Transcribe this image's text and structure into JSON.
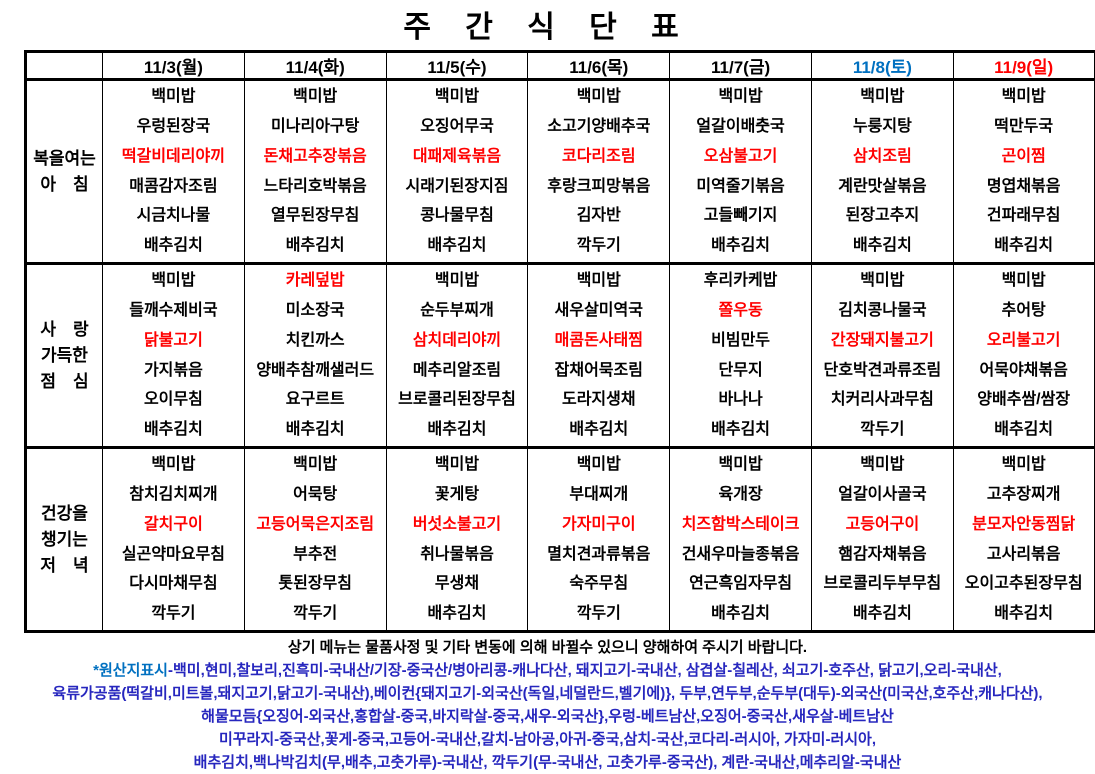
{
  "title": "주 간 식 단 표",
  "colors": {
    "item_red": "#FF0000",
    "saturday_blue": "#0070C0",
    "sunday_red": "#FF0000",
    "origin_navy": "#2626BE",
    "origin_label_blue": "#0070C0"
  },
  "table": {
    "days": [
      {
        "label": "11/3(월)",
        "color": "black"
      },
      {
        "label": "11/4(화)",
        "color": "black"
      },
      {
        "label": "11/5(수)",
        "color": "black"
      },
      {
        "label": "11/6(목)",
        "color": "black"
      },
      {
        "label": "11/7(금)",
        "color": "black"
      },
      {
        "label": "11/8(토)",
        "color": "blue"
      },
      {
        "label": "11/9(일)",
        "color": "red"
      }
    ],
    "meals": [
      {
        "name": "breakfast",
        "label_lines": [
          "복을여는",
          "아　침"
        ],
        "columns": [
          [
            {
              "t": "백미밥",
              "red": false
            },
            {
              "t": "우렁된장국",
              "red": false
            },
            {
              "t": "떡갈비데리야끼",
              "red": true
            },
            {
              "t": "매콤감자조림",
              "red": false
            },
            {
              "t": "시금치나물",
              "red": false
            },
            {
              "t": "배추김치",
              "red": false
            }
          ],
          [
            {
              "t": "백미밥",
              "red": false
            },
            {
              "t": "미나리아구탕",
              "red": false
            },
            {
              "t": "돈채고추장볶음",
              "red": true
            },
            {
              "t": "느타리호박볶음",
              "red": false
            },
            {
              "t": "열무된장무침",
              "red": false
            },
            {
              "t": "배추김치",
              "red": false
            }
          ],
          [
            {
              "t": "백미밥",
              "red": false
            },
            {
              "t": "오징어무국",
              "red": false
            },
            {
              "t": "대패제육볶음",
              "red": true
            },
            {
              "t": "시래기된장지짐",
              "red": false
            },
            {
              "t": "콩나물무침",
              "red": false
            },
            {
              "t": "배추김치",
              "red": false
            }
          ],
          [
            {
              "t": "백미밥",
              "red": false
            },
            {
              "t": "소고기양배추국",
              "red": false
            },
            {
              "t": "코다리조림",
              "red": true
            },
            {
              "t": "후랑크피망볶음",
              "red": false
            },
            {
              "t": "김자반",
              "red": false
            },
            {
              "t": "깍두기",
              "red": false
            }
          ],
          [
            {
              "t": "백미밥",
              "red": false
            },
            {
              "t": "얼갈이배춧국",
              "red": false
            },
            {
              "t": "오삼불고기",
              "red": true
            },
            {
              "t": "미역줄기볶음",
              "red": false
            },
            {
              "t": "고들빼기지",
              "red": false
            },
            {
              "t": "배추김치",
              "red": false
            }
          ],
          [
            {
              "t": "백미밥",
              "red": false
            },
            {
              "t": "누룽지탕",
              "red": false
            },
            {
              "t": "삼치조림",
              "red": true
            },
            {
              "t": "계란맛살볶음",
              "red": false
            },
            {
              "t": "된장고추지",
              "red": false
            },
            {
              "t": "배추김치",
              "red": false
            }
          ],
          [
            {
              "t": "백미밥",
              "red": false
            },
            {
              "t": "떡만두국",
              "red": false
            },
            {
              "t": "곤이찜",
              "red": true
            },
            {
              "t": "명엽채볶음",
              "red": false
            },
            {
              "t": "건파래무침",
              "red": false
            },
            {
              "t": "배추김치",
              "red": false
            }
          ]
        ]
      },
      {
        "name": "lunch",
        "label_lines": [
          "사　랑",
          "가득한",
          "점　심"
        ],
        "columns": [
          [
            {
              "t": "백미밥",
              "red": false
            },
            {
              "t": "들깨수제비국",
              "red": false
            },
            {
              "t": "닭불고기",
              "red": true
            },
            {
              "t": "가지볶음",
              "red": false
            },
            {
              "t": "오이무침",
              "red": false
            },
            {
              "t": "배추김치",
              "red": false
            }
          ],
          [
            {
              "t": "카레덮밥",
              "red": true
            },
            {
              "t": "미소장국",
              "red": false
            },
            {
              "t": "치킨까스",
              "red": false
            },
            {
              "t": "양배추참깨샐러드",
              "red": false
            },
            {
              "t": "요구르트",
              "red": false
            },
            {
              "t": "배추김치",
              "red": false
            }
          ],
          [
            {
              "t": "백미밥",
              "red": false
            },
            {
              "t": "순두부찌개",
              "red": false
            },
            {
              "t": "삼치데리야끼",
              "red": true
            },
            {
              "t": "메추리알조림",
              "red": false
            },
            {
              "t": "브로콜리된장무침",
              "red": false
            },
            {
              "t": "배추김치",
              "red": false
            }
          ],
          [
            {
              "t": "백미밥",
              "red": false
            },
            {
              "t": "새우살미역국",
              "red": false
            },
            {
              "t": "매콤돈사태찜",
              "red": true
            },
            {
              "t": "잡채어묵조림",
              "red": false
            },
            {
              "t": "도라지생채",
              "red": false
            },
            {
              "t": "배추김치",
              "red": false
            }
          ],
          [
            {
              "t": "후리카케밥",
              "red": false
            },
            {
              "t": "쫄우동",
              "red": true
            },
            {
              "t": "비빔만두",
              "red": false
            },
            {
              "t": "단무지",
              "red": false
            },
            {
              "t": "바나나",
              "red": false
            },
            {
              "t": "배추김치",
              "red": false
            }
          ],
          [
            {
              "t": "백미밥",
              "red": false
            },
            {
              "t": "김치콩나물국",
              "red": false
            },
            {
              "t": "간장돼지불고기",
              "red": true
            },
            {
              "t": "단호박견과류조림",
              "red": false
            },
            {
              "t": "치커리사과무침",
              "red": false
            },
            {
              "t": "깍두기",
              "red": false
            }
          ],
          [
            {
              "t": "백미밥",
              "red": false
            },
            {
              "t": "추어탕",
              "red": false
            },
            {
              "t": "오리불고기",
              "red": true
            },
            {
              "t": "어묵야채볶음",
              "red": false
            },
            {
              "t": "양배추쌈/쌈장",
              "red": false
            },
            {
              "t": "배추김치",
              "red": false
            }
          ]
        ]
      },
      {
        "name": "dinner",
        "label_lines": [
          "건강을",
          "챙기는",
          "저　녁"
        ],
        "columns": [
          [
            {
              "t": "백미밥",
              "red": false
            },
            {
              "t": "참치김치찌개",
              "red": false
            },
            {
              "t": "갈치구이",
              "red": true
            },
            {
              "t": "실곤약마요무침",
              "red": false
            },
            {
              "t": "다시마채무침",
              "red": false
            },
            {
              "t": "깍두기",
              "red": false
            }
          ],
          [
            {
              "t": "백미밥",
              "red": false
            },
            {
              "t": "어묵탕",
              "red": false
            },
            {
              "t": "고등어묵은지조림",
              "red": true
            },
            {
              "t": "부추전",
              "red": false
            },
            {
              "t": "톳된장무침",
              "red": false
            },
            {
              "t": "깍두기",
              "red": false
            }
          ],
          [
            {
              "t": "백미밥",
              "red": false
            },
            {
              "t": "꽃게탕",
              "red": false
            },
            {
              "t": "버섯소불고기",
              "red": true
            },
            {
              "t": "취나물볶음",
              "red": false
            },
            {
              "t": "무생채",
              "red": false
            },
            {
              "t": "배추김치",
              "red": false
            }
          ],
          [
            {
              "t": "백미밥",
              "red": false
            },
            {
              "t": "부대찌개",
              "red": false
            },
            {
              "t": "가자미구이",
              "red": true
            },
            {
              "t": "멸치견과류볶음",
              "red": false
            },
            {
              "t": "숙주무침",
              "red": false
            },
            {
              "t": "깍두기",
              "red": false
            }
          ],
          [
            {
              "t": "백미밥",
              "red": false
            },
            {
              "t": "육개장",
              "red": false
            },
            {
              "t": "치즈함박스테이크",
              "red": true
            },
            {
              "t": "건새우마늘종볶음",
              "red": false
            },
            {
              "t": "연근흑임자무침",
              "red": false
            },
            {
              "t": "배추김치",
              "red": false
            }
          ],
          [
            {
              "t": "백미밥",
              "red": false
            },
            {
              "t": "얼갈이사골국",
              "red": false
            },
            {
              "t": "고등어구이",
              "red": true
            },
            {
              "t": "햄감자채볶음",
              "red": false
            },
            {
              "t": "브로콜리두부무침",
              "red": false
            },
            {
              "t": "배추김치",
              "red": false
            }
          ],
          [
            {
              "t": "백미밥",
              "red": false
            },
            {
              "t": "고추장찌개",
              "red": false
            },
            {
              "t": "분모자안동찜닭",
              "red": true
            },
            {
              "t": "고사리볶음",
              "red": false
            },
            {
              "t": "오이고추된장무침",
              "red": false
            },
            {
              "t": "배추김치",
              "red": false
            }
          ]
        ]
      }
    ]
  },
  "footer": {
    "notice": "상기 메뉴는 물품사정 및 기타 변동에 의해 바뀔수 있으니 양해하여 주시기 바랍니다.",
    "origin_label": "*원산지표시",
    "origin_line1_rest": "-백미,현미,찰보리,진흑미-국내산/기장-중국산/병아리콩-캐나다산,  돼지고기-국내산,  삼겹살-칠레산,  쇠고기-호주산,  닭고기,오리-국내산,",
    "origin_lines": [
      "육류가공품(떡갈비,미트볼,돼지고기,닭고기-국내산),베이컨{돼지고기-외국산(독일,네덜란드,벨기에)},  두부,연두부,순두부(대두)-외국산(미국산,호주산,캐나다산),",
      "해물모듬{오징어-외국산,홍합살-중국,바지락살-중국,새우-외국산},우렁-베트남산,오징어-중국산,새우살-베트남산",
      "미꾸라지-중국산,꽃게-중국,고등어-국내산,갈치-남아공,아귀-중국,삼치-국산,코다리-러시아, 가자미-러시아,",
      "배추김치,백나박김치(무,배추,고춧가루)-국내산,  깍두기(무-국내산,  고춧가루-중국산),  계란-국내산,메추리알-국내산"
    ]
  }
}
